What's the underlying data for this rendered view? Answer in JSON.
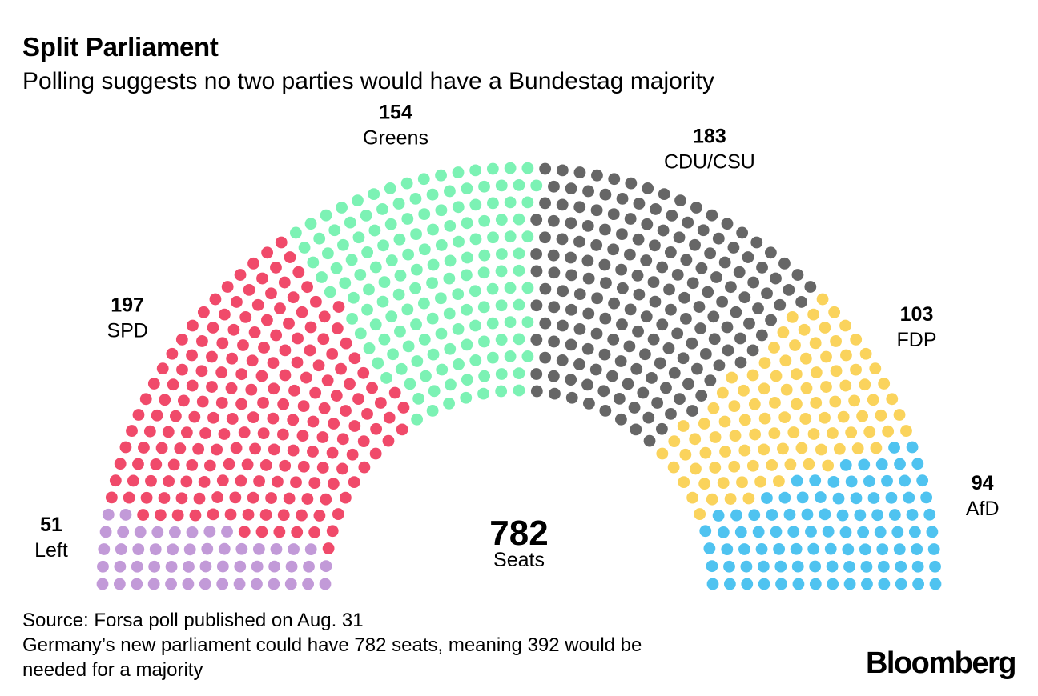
{
  "title": "Split Parliament",
  "subtitle": "Polling suggests no two parties would have a Bundestag majority",
  "chart_data": {
    "type": "parliament",
    "total_seats": 782,
    "total_label": "Seats",
    "parties": [
      {
        "name": "Left",
        "seats": 51,
        "color": "#c29ad8"
      },
      {
        "name": "SPD",
        "seats": 197,
        "color": "#f04a6a"
      },
      {
        "name": "Greens",
        "seats": 154,
        "color": "#7cf2b4"
      },
      {
        "name": "CDU/CSU",
        "seats": 183,
        "color": "#666666"
      },
      {
        "name": "FDP",
        "seats": 103,
        "color": "#fad35c"
      },
      {
        "name": "AfD",
        "seats": 94,
        "color": "#4fc3f0"
      }
    ]
  },
  "source_lines": [
    "Source: Forsa poll published on Aug. 31",
    "Germany’s new parliament could have 782 seats, meaning 392 would be",
    "needed for a majority"
  ],
  "logo": "Bloomberg"
}
